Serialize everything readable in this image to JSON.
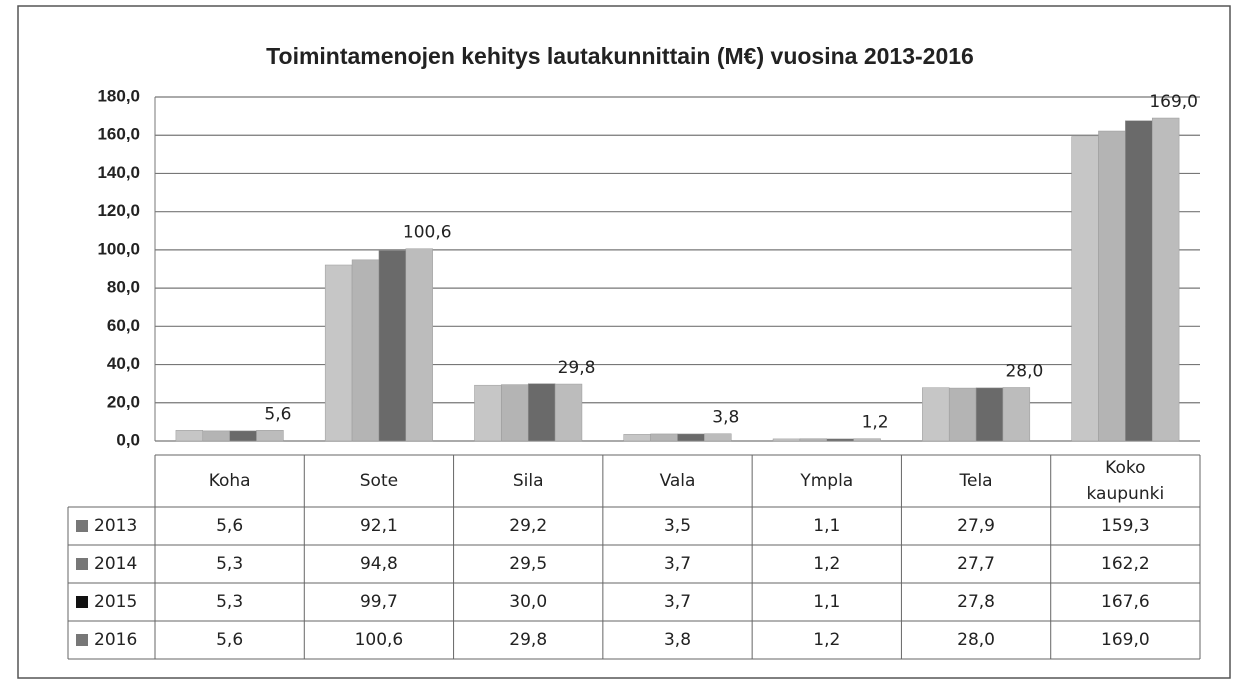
{
  "chart_data": {
    "type": "bar",
    "title": "Toimintamenojen kehitys lautakunnittain (M€) vuosina 2013-2016",
    "categories": [
      "Koha",
      "Sote",
      "Sila",
      "Vala",
      "Ympla",
      "Tela",
      "Koko kaupunki"
    ],
    "series": [
      {
        "name": "2013",
        "color": "#c6c6c6",
        "values": [
          5.6,
          92.1,
          29.2,
          3.5,
          1.1,
          27.9,
          159.3
        ],
        "value_labels": [
          "5,6",
          "92,1",
          "29,2",
          "3,5",
          "1,1",
          "27,9",
          "159,3"
        ]
      },
      {
        "name": "2014",
        "color": "#b4b4b4",
        "values": [
          5.3,
          94.8,
          29.5,
          3.7,
          1.2,
          27.7,
          162.2
        ],
        "value_labels": [
          "5,3",
          "94,8",
          "29,5",
          "3,7",
          "1,2",
          "27,7",
          "162,2"
        ]
      },
      {
        "name": "2015",
        "color": "#6a6a6a",
        "values": [
          5.3,
          99.7,
          30.0,
          3.7,
          1.1,
          27.8,
          167.6
        ],
        "value_labels": [
          "5,3",
          "99,7",
          "30,0",
          "3,7",
          "1,1",
          "27,8",
          "167,6"
        ]
      },
      {
        "name": "2016",
        "color": "#bcbcbc",
        "values": [
          5.6,
          100.6,
          29.8,
          3.8,
          1.2,
          28.0,
          169.0
        ],
        "value_labels": [
          "5,6",
          "100,6",
          "29,8",
          "3,8",
          "1,2",
          "28,0",
          "169,0"
        ]
      }
    ],
    "ylim": [
      0,
      180
    ],
    "yticks": [
      {
        "value": 0,
        "label": "0,0"
      },
      {
        "value": 20,
        "label": "20,0"
      },
      {
        "value": 40,
        "label": "40,0"
      },
      {
        "value": 60,
        "label": "60,0"
      },
      {
        "value": 80,
        "label": "80,0"
      },
      {
        "value": 100,
        "label": "100,0"
      },
      {
        "value": 120,
        "label": "120,0"
      },
      {
        "value": 140,
        "label": "140,0"
      },
      {
        "value": 160,
        "label": "160,0"
      },
      {
        "value": 180,
        "label": "180,0"
      }
    ],
    "grid": true,
    "data_labels_series": 3
  }
}
